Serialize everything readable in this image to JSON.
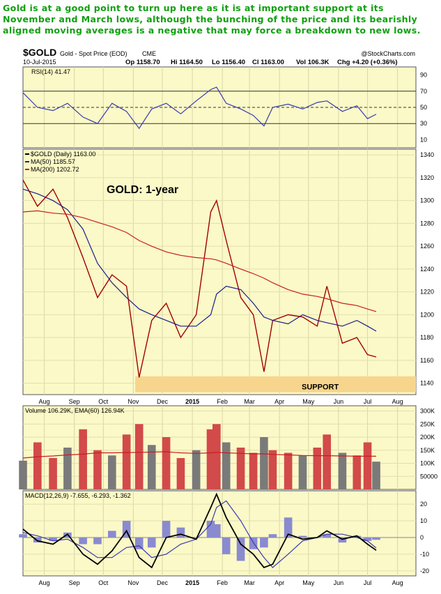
{
  "headline": "Gold is at a good point to turn up here as it is at important support at its November and March lows, although the bunching of the price and its bearishly aligned moving averages is a negative that may force a breakdown to new lows.",
  "header": {
    "symbol": "$GOLD",
    "description": "Gold - Spot Price (EOD)",
    "exchange": "CME",
    "watermark": "@StockCharts.com",
    "date": "10-Jul-2015",
    "quote": {
      "open": "Op 1158.70",
      "high": "Hi 1164.50",
      "low": "Lo 1156.40",
      "close": "Cl 1163.00",
      "vol": "Vol 106.3K",
      "change": "Chg +4.20 (+0.36%)"
    }
  },
  "colors": {
    "panel_bg": "#fbf9c7",
    "price_up": "#000000",
    "price_down": "#a00000",
    "ma50": "#1c1c8c",
    "ma200": "#c81e1e",
    "rsi": "#3a3ab0",
    "volume_up": "#7a7a7a",
    "volume_down": "#d24a4a",
    "support_band": "#f7d58c",
    "headline": "#11a011"
  },
  "chart_data": [
    {
      "panel": "rsi",
      "type": "line",
      "legend": "RSI(14) 41.47",
      "y_ticks": [
        90,
        70,
        50,
        30,
        10
      ],
      "ylim": [
        0,
        100
      ],
      "reference_lines": [
        70,
        50,
        30
      ],
      "x": [
        "2014-07-10",
        "2014-07-25",
        "2014-08-10",
        "2014-08-25",
        "2014-09-10",
        "2014-09-25",
        "2014-10-10",
        "2014-10-25",
        "2014-11-07",
        "2014-11-20",
        "2014-12-05",
        "2014-12-20",
        "2015-01-05",
        "2015-01-20",
        "2015-01-26",
        "2015-02-05",
        "2015-02-20",
        "2015-03-05",
        "2015-03-16",
        "2015-03-25",
        "2015-04-10",
        "2015-04-25",
        "2015-05-10",
        "2015-05-20",
        "2015-06-05",
        "2015-06-20",
        "2015-07-01",
        "2015-07-10"
      ],
      "values": [
        68,
        50,
        46,
        55,
        38,
        30,
        55,
        45,
        24,
        48,
        55,
        42,
        58,
        72,
        75,
        55,
        48,
        40,
        27,
        50,
        54,
        48,
        56,
        58,
        45,
        52,
        36,
        41.47
      ]
    },
    {
      "panel": "price",
      "type": "line",
      "title": "GOLD: 1-year",
      "legend": [
        "$GOLD (Daily) 1163.00",
        "MA(50) 1185.57",
        "MA(200) 1202.72"
      ],
      "y_ticks": [
        1340,
        1320,
        1300,
        1280,
        1260,
        1240,
        1220,
        1200,
        1180,
        1160,
        1140
      ],
      "ylim": [
        1130,
        1345
      ],
      "annotation": "SUPPORT",
      "support_range": [
        1132,
        1146
      ],
      "x": [
        "2014-07-10",
        "2014-07-25",
        "2014-08-10",
        "2014-08-25",
        "2014-09-10",
        "2014-09-25",
        "2014-10-10",
        "2014-10-25",
        "2014-11-07",
        "2014-11-20",
        "2014-12-05",
        "2014-12-20",
        "2015-01-05",
        "2015-01-20",
        "2015-01-26",
        "2015-02-05",
        "2015-02-20",
        "2015-03-05",
        "2015-03-16",
        "2015-03-25",
        "2015-04-10",
        "2015-04-25",
        "2015-05-10",
        "2015-05-20",
        "2015-06-05",
        "2015-06-20",
        "2015-07-01",
        "2015-07-10"
      ],
      "series": [
        {
          "name": "$GOLD (Daily) 1163.00",
          "values": [
            1318,
            1295,
            1310,
            1285,
            1250,
            1215,
            1235,
            1225,
            1145,
            1195,
            1210,
            1180,
            1200,
            1290,
            1300,
            1265,
            1215,
            1200,
            1150,
            1195,
            1200,
            1198,
            1190,
            1225,
            1175,
            1180,
            1165,
            1163
          ]
        },
        {
          "name": "MA(50) 1185.57",
          "values": [
            1310,
            1306,
            1300,
            1292,
            1275,
            1245,
            1228,
            1215,
            1205,
            1200,
            1195,
            1190,
            1190,
            1200,
            1218,
            1225,
            1222,
            1210,
            1198,
            1195,
            1192,
            1200,
            1195,
            1193,
            1190,
            1195,
            1190,
            1185.57
          ]
        },
        {
          "name": "MA(200) 1202.72",
          "values": [
            1290,
            1291,
            1289,
            1288,
            1285,
            1281,
            1277,
            1272,
            1265,
            1260,
            1255,
            1252,
            1250,
            1249,
            1248,
            1245,
            1240,
            1236,
            1232,
            1228,
            1222,
            1218,
            1216,
            1214,
            1210,
            1208,
            1205,
            1202.72
          ]
        }
      ]
    },
    {
      "panel": "volume",
      "type": "bar",
      "legend": "Volume 106.29K, EMA(60) 126.94K",
      "y_ticks": [
        "300K",
        "250K",
        "200K",
        "150K",
        "100K",
        "50000"
      ],
      "y_tick_values": [
        300000,
        250000,
        200000,
        150000,
        100000,
        50000
      ],
      "ylim": [
        0,
        320000
      ],
      "x": [
        "2014-07-10",
        "2014-07-25",
        "2014-08-10",
        "2014-08-25",
        "2014-09-10",
        "2014-09-25",
        "2014-10-10",
        "2014-10-25",
        "2014-11-07",
        "2014-11-20",
        "2014-12-05",
        "2014-12-20",
        "2015-01-05",
        "2015-01-20",
        "2015-01-26",
        "2015-02-05",
        "2015-02-20",
        "2015-03-05",
        "2015-03-16",
        "2015-03-25",
        "2015-04-10",
        "2015-04-25",
        "2015-05-10",
        "2015-05-20",
        "2015-06-05",
        "2015-06-20",
        "2015-07-01",
        "2015-07-10"
      ],
      "volume": [
        110000,
        180000,
        120000,
        160000,
        230000,
        150000,
        130000,
        210000,
        250000,
        170000,
        200000,
        120000,
        150000,
        230000,
        250000,
        180000,
        160000,
        140000,
        200000,
        150000,
        140000,
        130000,
        160000,
        210000,
        140000,
        130000,
        180000,
        106290
      ],
      "ema60": [
        120000,
        125000,
        128000,
        132000,
        135000,
        140000,
        140000,
        141000,
        142000,
        143000,
        144000,
        140000,
        138000,
        140000,
        142000,
        140000,
        138000,
        136000,
        136000,
        134000,
        132000,
        130000,
        129000,
        129000,
        128000,
        127000,
        127000,
        126940
      ]
    },
    {
      "panel": "macd",
      "type": "line",
      "legend": "MACD(12,26,9) -7.655, -6.293, -1.362",
      "y_ticks": [
        20,
        10,
        0,
        -10,
        -20
      ],
      "ylim": [
        -23,
        28
      ],
      "x": [
        "2014-07-10",
        "2014-07-25",
        "2014-08-10",
        "2014-08-25",
        "2014-09-10",
        "2014-09-25",
        "2014-10-10",
        "2014-10-25",
        "2014-11-07",
        "2014-11-20",
        "2014-12-05",
        "2014-12-20",
        "2015-01-05",
        "2015-01-20",
        "2015-01-26",
        "2015-02-05",
        "2015-02-20",
        "2015-03-05",
        "2015-03-16",
        "2015-03-25",
        "2015-04-10",
        "2015-04-25",
        "2015-05-10",
        "2015-05-20",
        "2015-06-05",
        "2015-06-20",
        "2015-07-01",
        "2015-07-10"
      ],
      "series": [
        {
          "name": "MACD",
          "values": [
            5,
            -2,
            -4,
            2,
            -10,
            -16,
            -8,
            4,
            -12,
            -18,
            0,
            2,
            -1,
            18,
            26,
            12,
            -4,
            -10,
            -18,
            -16,
            2,
            -1,
            0,
            4,
            -1,
            1,
            -4,
            -7.655
          ]
        },
        {
          "name": "Signal",
          "values": [
            3,
            1,
            -2,
            -1,
            -6,
            -12,
            -12,
            -6,
            -5,
            -12,
            -10,
            -4,
            -1,
            8,
            18,
            22,
            10,
            -3,
            -12,
            -18,
            -10,
            -2,
            0,
            2,
            2,
            0,
            -2,
            -6.293
          ]
        }
      ],
      "histogram": [
        2,
        -3,
        -2,
        3,
        -4,
        -4,
        4,
        10,
        -7,
        -6,
        10,
        6,
        0,
        10,
        8,
        -10,
        -14,
        -7,
        -6,
        2,
        12,
        1,
        0,
        2,
        -3,
        1,
        -2,
        -1.362
      ]
    }
  ],
  "x_axis": {
    "labels": [
      "Aug",
      "Sep",
      "Oct",
      "Nov",
      "Dec",
      "2015",
      "Feb",
      "Mar",
      "Apr",
      "May",
      "Jun",
      "Jul",
      "Aug"
    ],
    "label_dates": [
      "2014-08-01",
      "2014-09-01",
      "2014-10-01",
      "2014-11-01",
      "2014-12-01",
      "2015-01-01",
      "2015-02-01",
      "2015-03-01",
      "2015-04-01",
      "2015-05-01",
      "2015-06-01",
      "2015-07-01",
      "2015-08-01"
    ],
    "range": [
      "2014-07-10",
      "2015-08-20"
    ]
  }
}
